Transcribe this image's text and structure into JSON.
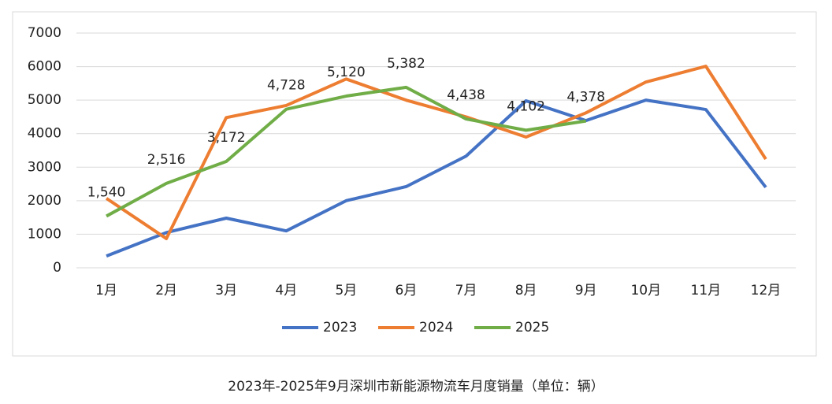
{
  "chart_data": {
    "type": "line",
    "caption": "2023年-2025年9月深圳市新能源物流车月度销量（单位：辆）",
    "categories": [
      "1月",
      "2月",
      "3月",
      "4月",
      "5月",
      "6月",
      "7月",
      "8月",
      "9月",
      "10月",
      "11月",
      "12月"
    ],
    "series": [
      {
        "name": "2023",
        "color": "#4472c4",
        "values": [
          350,
          1050,
          1480,
          1100,
          2000,
          2420,
          3330,
          4980,
          4390,
          5000,
          4720,
          2400
        ]
      },
      {
        "name": "2024",
        "color": "#ed7d31",
        "values": [
          2070,
          870,
          4480,
          4840,
          5630,
          5000,
          4500,
          3900,
          4620,
          5540,
          6010,
          3240
        ]
      },
      {
        "name": "2025",
        "color": "#70ad47",
        "values": [
          1540,
          2516,
          3172,
          4728,
          5120,
          5382,
          4438,
          4102,
          4378,
          null,
          null,
          null
        ],
        "value_labels": [
          "1,540",
          "2,516",
          "3,172",
          "4,728",
          "5,120",
          "5,382",
          "4,438",
          "4,102",
          "4,378",
          null,
          null,
          null
        ]
      }
    ],
    "ylim": [
      0,
      7000
    ],
    "yticks": [
      0,
      1000,
      2000,
      3000,
      4000,
      5000,
      6000,
      7000
    ],
    "grid": true,
    "legend": "bottom"
  }
}
